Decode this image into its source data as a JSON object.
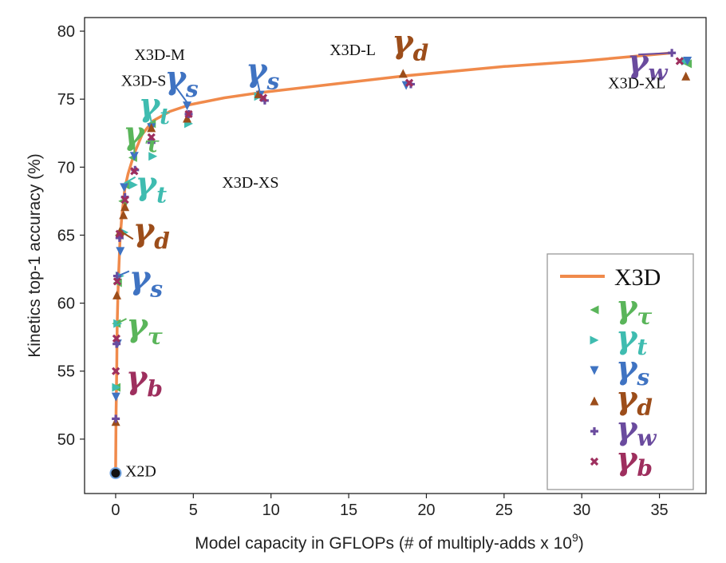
{
  "chart_data": {
    "type": "line",
    "title": "",
    "xlabel": "Model capacity in GFLOPs (# of multiply-adds x 10",
    "xlabel_sup": "9",
    "xlabel_end": ")",
    "ylabel": "Kinetics top-1 accuracy (%)",
    "xlim": [
      -2,
      38
    ],
    "ylim": [
      46,
      81
    ],
    "xticks": [
      0,
      5,
      10,
      15,
      20,
      25,
      30,
      35
    ],
    "yticks": [
      50,
      55,
      60,
      65,
      70,
      75,
      80
    ],
    "grid": false,
    "legend_position": "bottom-right",
    "colors": {
      "line": "#f08a4b",
      "tau": "#5ab55a",
      "t": "#3fbcb0",
      "s": "#3f73c2",
      "d": "#9c4d1a",
      "w": "#6a4b9e",
      "b": "#9e2f5e"
    },
    "legend": {
      "line_label": "X3D",
      "entries": [
        {
          "key": "tau",
          "symbol": "γ",
          "sub": "τ",
          "marker": "triangle-left"
        },
        {
          "key": "t",
          "symbol": "γ",
          "sub": "t",
          "marker": "triangle-right"
        },
        {
          "key": "s",
          "symbol": "γ",
          "sub": "s",
          "marker": "triangle-down"
        },
        {
          "key": "d",
          "symbol": "γ",
          "sub": "d",
          "marker": "triangle-up"
        },
        {
          "key": "w",
          "symbol": "γ",
          "sub": "w",
          "marker": "plus"
        },
        {
          "key": "b",
          "symbol": "γ",
          "sub": "b",
          "marker": "x"
        }
      ]
    },
    "line_series": {
      "name": "X3D",
      "x": [
        0,
        0.03,
        0.07,
        0.1,
        0.15,
        0.2,
        0.28,
        0.4,
        0.6,
        0.8,
        1.2,
        1.7,
        2.4,
        3.5,
        4.8,
        7,
        9.4,
        14,
        18.5,
        25,
        30,
        35.8
      ],
      "y": [
        47.5,
        52,
        55,
        58.5,
        60.8,
        62.3,
        64.6,
        66.4,
        68.5,
        69.5,
        71.0,
        72.4,
        73.4,
        74.1,
        74.6,
        75.1,
        75.5,
        76.1,
        76.7,
        77.4,
        77.8,
        78.4
      ]
    },
    "scatter_series": [
      {
        "key": "tau",
        "x": [
          0.03,
          0.04,
          0.12,
          0.22,
          0.45,
          0.6,
          1.1,
          2.3,
          36.8
        ],
        "y": [
          53.8,
          58.5,
          61.5,
          65.0,
          67.5,
          68.7,
          70.7,
          73.2,
          77.6
        ]
      },
      {
        "key": "t",
        "x": [
          0.05,
          0.14,
          0.28,
          0.55,
          1.15,
          2.4,
          4.7,
          9.2,
          36.7
        ],
        "y": [
          53.8,
          58.5,
          62.0,
          65.2,
          68.7,
          70.8,
          73.2,
          75.2,
          77.8
        ]
      },
      {
        "key": "s",
        "x": [
          0.02,
          0.12,
          0.3,
          0.55,
          1.2,
          2.3,
          4.6,
          9.3,
          18.7,
          36.8
        ],
        "y": [
          53.1,
          57.0,
          63.8,
          68.5,
          70.8,
          72.9,
          74.5,
          75.3,
          76.0,
          77.8
        ]
      },
      {
        "key": "d",
        "x": [
          0.01,
          0.08,
          0.28,
          0.5,
          0.6,
          2.3,
          4.6,
          9.2,
          18.5,
          36.7
        ],
        "y": [
          51.3,
          60.6,
          65.3,
          66.5,
          67.1,
          72.9,
          73.6,
          75.4,
          76.9,
          76.7
        ]
      },
      {
        "key": "w",
        "x": [
          0.01,
          0.06,
          0.1,
          0.25,
          0.6,
          1.25,
          2.3,
          4.7,
          9.6,
          19.0,
          35.8
        ],
        "y": [
          51.5,
          57.0,
          62.0,
          64.8,
          67.8,
          69.8,
          71.8,
          73.9,
          74.9,
          76.1,
          78.4
        ]
      },
      {
        "key": "b",
        "x": [
          0.01,
          0.05,
          0.1,
          0.25,
          0.6,
          1.2,
          2.3,
          4.7,
          9.5,
          18.9,
          36.3
        ],
        "y": [
          55.0,
          57.4,
          61.6,
          65.1,
          67.6,
          69.7,
          72.2,
          73.9,
          75.1,
          76.2,
          77.8
        ]
      }
    ],
    "x2d_point": {
      "x": 0,
      "y": 47.5
    },
    "model_labels": [
      {
        "text": "X2D",
        "x": 0,
        "y": 47.5
      },
      {
        "text": "X3D-XS",
        "x": 1.1,
        "y": 68.5
      },
      {
        "text": "X3D-S",
        "x": 2.4,
        "y": 73.4
      },
      {
        "text": "X3D-M",
        "x": 4.8,
        "y": 74.6
      },
      {
        "text": "X3D-L",
        "x": 18.5,
        "y": 76.7
      },
      {
        "text": "X3D-XL",
        "x": 35.8,
        "y": 78.4
      }
    ],
    "annotations": [
      {
        "key": "b",
        "symbol": "γ",
        "sub": "b",
        "x": 0.05,
        "y": 55.0
      },
      {
        "key": "tau",
        "symbol": "γ",
        "sub": "τ",
        "x": 0.08,
        "y": 58.5
      },
      {
        "key": "s",
        "symbol": "γ",
        "sub": "s",
        "x": 0.15,
        "y": 62.0
      },
      {
        "key": "d",
        "symbol": "γ",
        "sub": "d",
        "x": 0.3,
        "y": 65.3
      },
      {
        "key": "t",
        "symbol": "γ",
        "sub": "t",
        "x": 0.55,
        "y": 68.8
      },
      {
        "key": "tau",
        "symbol": "γ",
        "sub": "τ",
        "x": 1.2,
        "y": 71.0
      },
      {
        "key": "t",
        "symbol": "γ",
        "sub": "t",
        "x": 2.3,
        "y": 73.3
      },
      {
        "key": "s",
        "symbol": "γ",
        "sub": "s",
        "x": 4.7,
        "y": 74.6
      },
      {
        "key": "s",
        "symbol": "γ",
        "sub": "s",
        "x": 9.3,
        "y": 75.4
      },
      {
        "key": "d",
        "symbol": "γ",
        "sub": "d",
        "x": 18.5,
        "y": 76.9
      },
      {
        "key": "w",
        "symbol": "γ",
        "sub": "w",
        "x": 35.8,
        "y": 78.4
      }
    ]
  }
}
